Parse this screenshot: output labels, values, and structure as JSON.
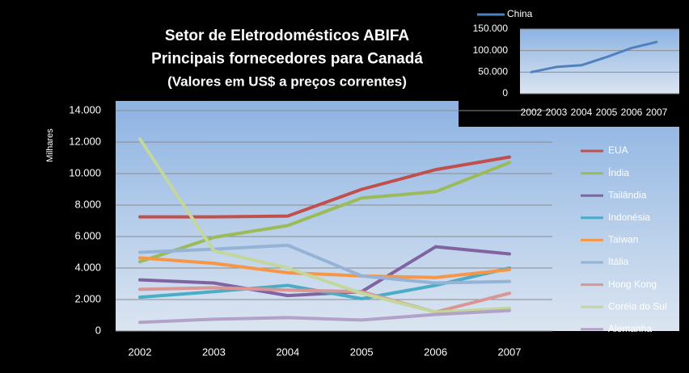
{
  "chart_data": [
    {
      "type": "line",
      "title": [
        "Setor de Eletrodomésticos  ABIFA",
        "Principais fornecedores para Canadá",
        "(Valores em US$ a preços correntes)"
      ],
      "y_label": "Milhares",
      "categories": [
        "2002",
        "2003",
        "2004",
        "2005",
        "2006",
        "2007"
      ],
      "ylim": [
        0,
        14000
      ],
      "yticks": [
        0,
        {
          "value": 2000,
          "label": "2.000"
        },
        {
          "value": 4000,
          "label": "4.000"
        },
        {
          "value": 6000,
          "label": "6.000"
        },
        {
          "value": 8000,
          "label": "8.000"
        },
        {
          "value": 10000,
          "label": "10.000"
        },
        {
          "value": 12000,
          "label": "12.000"
        },
        {
          "value": 14000,
          "label": "14.000"
        }
      ],
      "grid": true,
      "legend": "right",
      "series": [
        {
          "name": "EUA",
          "color": "#c0504d",
          "values": [
            7250,
            7250,
            7300,
            9000,
            10250,
            11050
          ]
        },
        {
          "name": "Índia",
          "color": "#9bbb59",
          "values": [
            4400,
            5950,
            6700,
            8450,
            8850,
            10700
          ]
        },
        {
          "name": "Tailândia",
          "color": "#8064a2",
          "values": [
            3250,
            3050,
            2250,
            2500,
            5350,
            4900
          ]
        },
        {
          "name": "Indonésia",
          "color": "#4bacc6",
          "values": [
            2150,
            2500,
            2900,
            2050,
            2900,
            4000
          ]
        },
        {
          "name": "Taiwan",
          "color": "#f79646",
          "values": [
            4650,
            4300,
            3700,
            3500,
            3400,
            3900
          ]
        },
        {
          "name": "Itália",
          "color": "#95b3d7",
          "values": [
            5000,
            5200,
            5450,
            3500,
            3050,
            3150
          ]
        },
        {
          "name": "Hong Kong",
          "color": "#d99694",
          "values": [
            2650,
            2750,
            2600,
            2500,
            1200,
            2400
          ]
        },
        {
          "name": "Coréia do Sul",
          "color": "#c3d69b",
          "values": [
            12200,
            5100,
            4000,
            2400,
            1200,
            1450
          ]
        },
        {
          "name": "Alemanha",
          "color": "#b3a2c7",
          "values": [
            550,
            750,
            850,
            700,
            1050,
            1300
          ]
        }
      ]
    },
    {
      "type": "line",
      "categories": [
        "2002",
        "2003",
        "2004",
        "2005",
        "2006",
        "2007"
      ],
      "ylim": [
        0,
        150000
      ],
      "yticks": [
        0,
        {
          "value": 50000,
          "label": "50.000"
        },
        {
          "value": 100000,
          "label": "100.000"
        },
        {
          "value": 150000,
          "label": "150.000"
        }
      ],
      "grid": true,
      "legend": "top",
      "series": [
        {
          "name": "China",
          "color": "#4f81bd",
          "values": [
            50000,
            62000,
            66000,
            85000,
            106000,
            120000
          ]
        }
      ]
    }
  ]
}
